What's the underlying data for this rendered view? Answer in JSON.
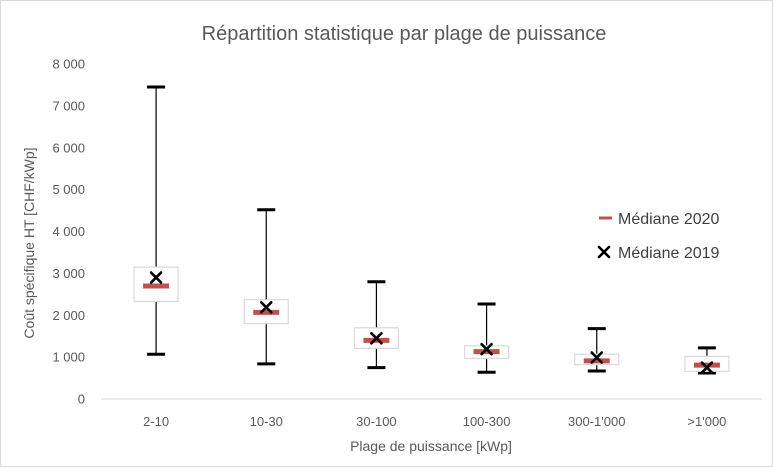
{
  "chart_data": {
    "type": "boxplot",
    "title": "Répartition statistique par plage de puissance",
    "xlabel": "Plage de puissance [kWp]",
    "ylabel": "Coût spécifique HT [CHF/kWp]",
    "ylim": [
      0,
      8000
    ],
    "yticks": [
      0,
      1000,
      2000,
      3000,
      4000,
      5000,
      6000,
      7000,
      8000
    ],
    "ytick_labels": [
      "0",
      "1 000",
      "2 000",
      "3 000",
      "4 000",
      "5 000",
      "6 000",
      "7 000",
      "8 000"
    ],
    "grid": false,
    "legend_position": "right",
    "categories": [
      "2-10",
      "10-30",
      "30-100",
      "100-300",
      "300-1'000",
      ">1'000"
    ],
    "boxes": [
      {
        "min": 1070,
        "q1": 2330,
        "median": 2700,
        "q3": 3150,
        "max": 7450
      },
      {
        "min": 840,
        "q1": 1800,
        "median": 2070,
        "q3": 2370,
        "max": 4520
      },
      {
        "min": 750,
        "q1": 1210,
        "median": 1400,
        "q3": 1700,
        "max": 2800
      },
      {
        "min": 640,
        "q1": 970,
        "median": 1130,
        "q3": 1270,
        "max": 2270
      },
      {
        "min": 670,
        "q1": 820,
        "median": 910,
        "q3": 1070,
        "max": 1680
      },
      {
        "min": 620,
        "q1": 660,
        "median": 810,
        "q3": 1020,
        "max": 1220
      }
    ],
    "series": [
      {
        "name": "Médiane 2020",
        "marker": "dash",
        "color": "#c0504d",
        "values": [
          2700,
          2070,
          1400,
          1130,
          910,
          810
        ]
      },
      {
        "name": "Médiane 2019",
        "marker": "x",
        "color": "#000000",
        "values": [
          2900,
          2190,
          1450,
          1190,
          990,
          750
        ]
      }
    ],
    "colors": {
      "box_fill": "#ffffff",
      "box_stroke": "#d9d9d9",
      "whisker": "#000000",
      "text": "#595959"
    }
  }
}
